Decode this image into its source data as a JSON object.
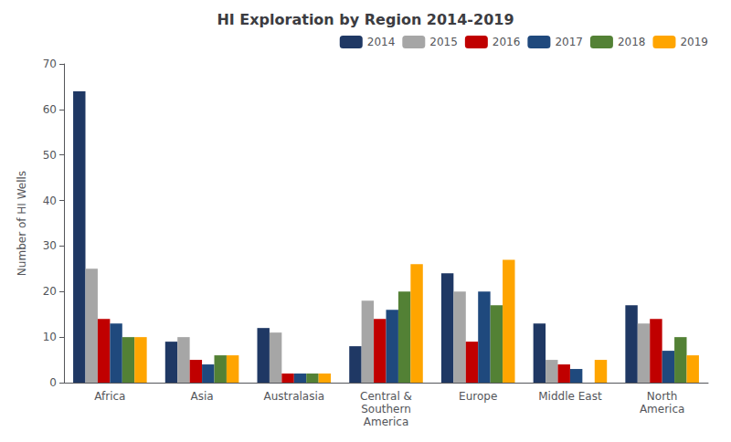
{
  "chart_data": {
    "type": "bar",
    "title": "HI Exploration by Region 2014-2019",
    "ylabel": "Number of HI Wells",
    "categories": [
      "Africa",
      "Asia",
      "Australasia",
      "Central &\nSouthern\nAmerica",
      "Europe",
      "Middle East",
      "North\nAmerica"
    ],
    "series": [
      {
        "name": "2014",
        "color": "#1F3864",
        "values": [
          64,
          9,
          12,
          8,
          24,
          13,
          17
        ]
      },
      {
        "name": "2015",
        "color": "#A6A6A6",
        "values": [
          25,
          10,
          11,
          18,
          20,
          5,
          13
        ]
      },
      {
        "name": "2016",
        "color": "#C00000",
        "values": [
          14,
          5,
          2,
          14,
          9,
          4,
          14
        ]
      },
      {
        "name": "2017",
        "color": "#1F497D",
        "values": [
          13,
          4,
          2,
          16,
          20,
          3,
          7
        ]
      },
      {
        "name": "2018",
        "color": "#538135",
        "values": [
          10,
          6,
          2,
          20,
          17,
          0,
          10
        ]
      },
      {
        "name": "2019",
        "color": "#FFA500",
        "values": [
          10,
          6,
          2,
          26,
          27,
          5,
          6
        ]
      }
    ],
    "ylim": [
      0,
      70
    ],
    "yticks": [
      0,
      10,
      20,
      30,
      40,
      50,
      60,
      70
    ],
    "grid": false,
    "legend": "upper right"
  }
}
